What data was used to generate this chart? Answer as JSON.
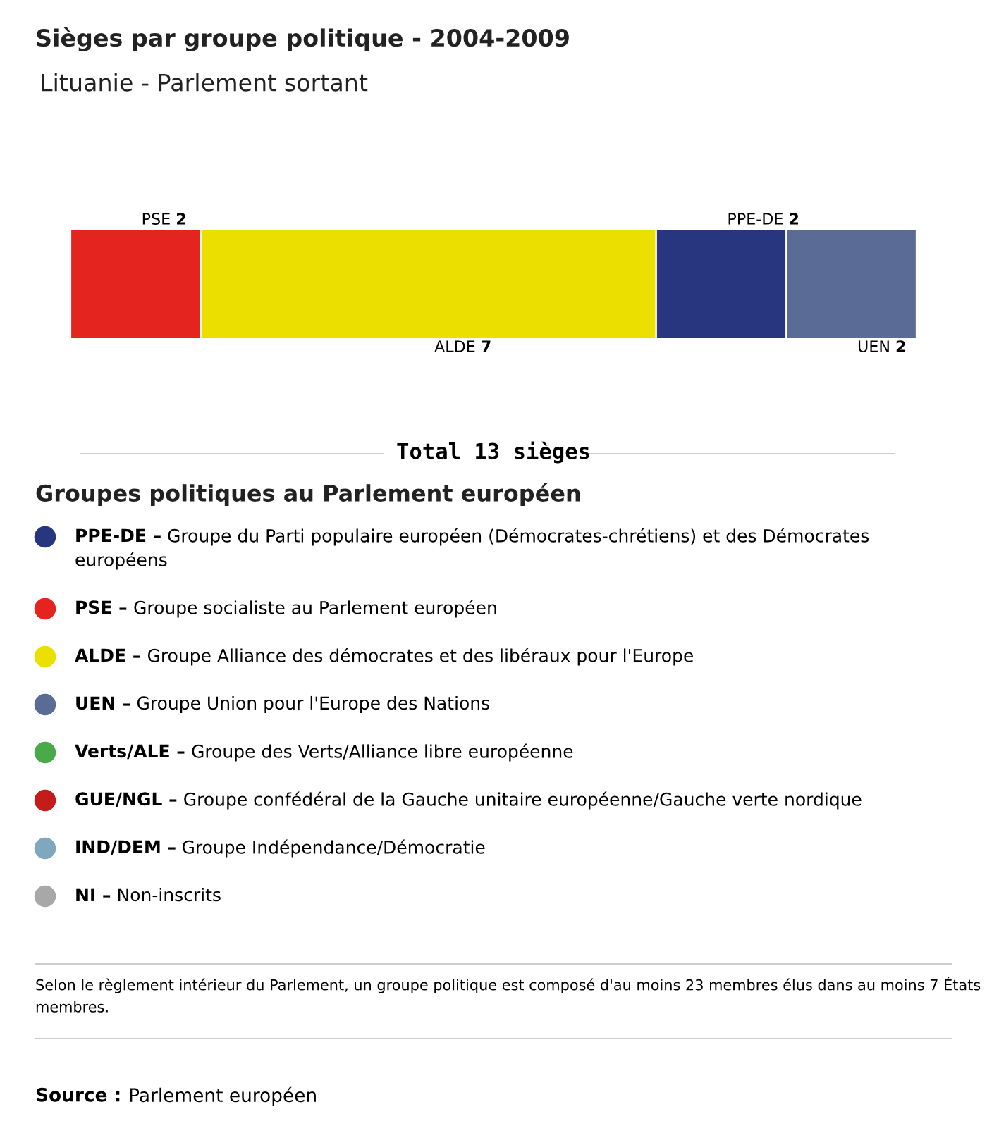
{
  "chart_data": [
    {
      "type": "bar",
      "orientation": "horizontal",
      "stacked": true,
      "title": "Sièges par groupe politique - 2004-2009",
      "subtitle": "Lituanie - Parlement sortant",
      "categories": [
        null
      ],
      "tick_labels": false,
      "data_labels": true,
      "series": [
        {
          "name": "PSE",
          "color": "#e3241f",
          "values": [
            2
          ]
        },
        {
          "name": "ALDE",
          "color": "#ebdf00",
          "values": [
            7
          ]
        },
        {
          "name": "PPE-DE",
          "color": "#27367e",
          "values": [
            2
          ]
        },
        {
          "name": "UEN",
          "color": "#5a6c96",
          "values": [
            2
          ]
        }
      ],
      "annotations": [
        "Total 13 sièges"
      ]
    },
    {
      "type": "other",
      "title": "Groupes politiques au Parlement européen",
      "categories": [
        "PPE-DE – Groupe du Parti populaire européen (Démocrates-chrétiens) et des Démocrates européens",
        "PSE – Groupe socialiste au Parlement européen",
        "ALDE – Groupe Alliance des démocrates et des libéraux pour l'Europe",
        "UEN – Groupe Union pour l'Europe des Nations",
        "Verts/ALE – Groupe des Verts/Alliance libre européenne",
        "GUE/NGL – Groupe confédéral de la Gauche unitaire européenne/Gauche verte nordique",
        "IND/DEM – Groupe Indépendance/Démocratie",
        "NI – Non-inscrits"
      ],
      "colors": [
        "#27367e",
        "#e3241f",
        "#ebdf00",
        "#5a6c96",
        "#4aaa4a",
        "#c41b1b",
        "#7fa7bd",
        "#a8a8a8"
      ],
      "annotations": [
        "Selon le règlement intérieur du Parlement, un groupe politique est composé d'au moins 23 membres élus dans au moins 7 États membres.",
        "Source : Parlement européen"
      ]
    }
  ]
}
